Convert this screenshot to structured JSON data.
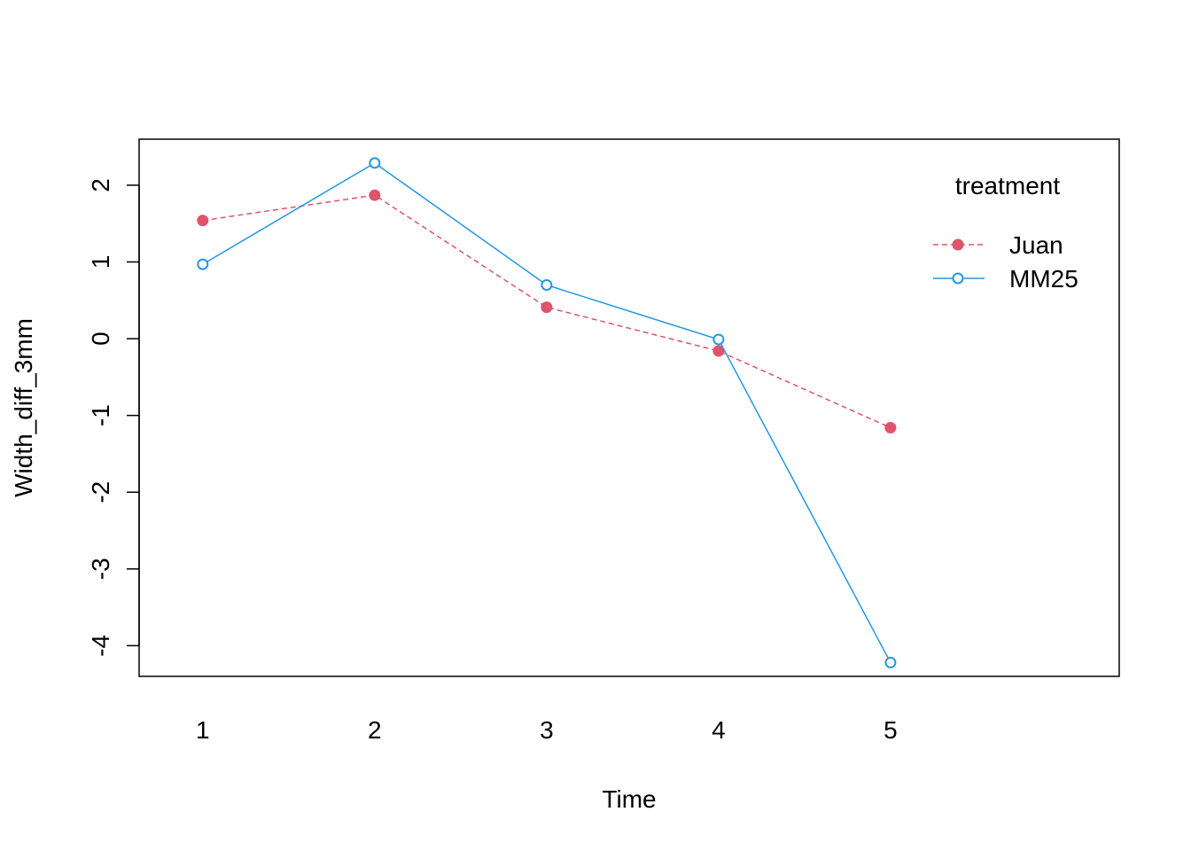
{
  "chart_data": {
    "type": "line",
    "title": "",
    "xlabel": "Time",
    "ylabel": "Width_diff_3mm",
    "x": [
      1,
      2,
      3,
      4,
      5
    ],
    "x_ticks": [
      "1",
      "2",
      "3",
      "4",
      "5"
    ],
    "y_ticks": [
      "-4",
      "-3",
      "-2",
      "-1",
      "0",
      "1",
      "2"
    ],
    "xlim": [
      0.63,
      6.33
    ],
    "ylim": [
      -4.4,
      2.6
    ],
    "grid": false,
    "legend": {
      "title": "treatment",
      "position": "top-right"
    },
    "series": [
      {
        "name": "Juan",
        "values": [
          1.54,
          1.87,
          0.41,
          -0.16,
          -1.16
        ],
        "color": "#DF536B",
        "line_style": "dashed",
        "marker": "filled-circle"
      },
      {
        "name": "MM25",
        "values": [
          0.97,
          2.29,
          0.7,
          -0.01,
          -4.22
        ],
        "color": "#2297E6",
        "line_style": "solid",
        "marker": "open-circle"
      }
    ]
  }
}
